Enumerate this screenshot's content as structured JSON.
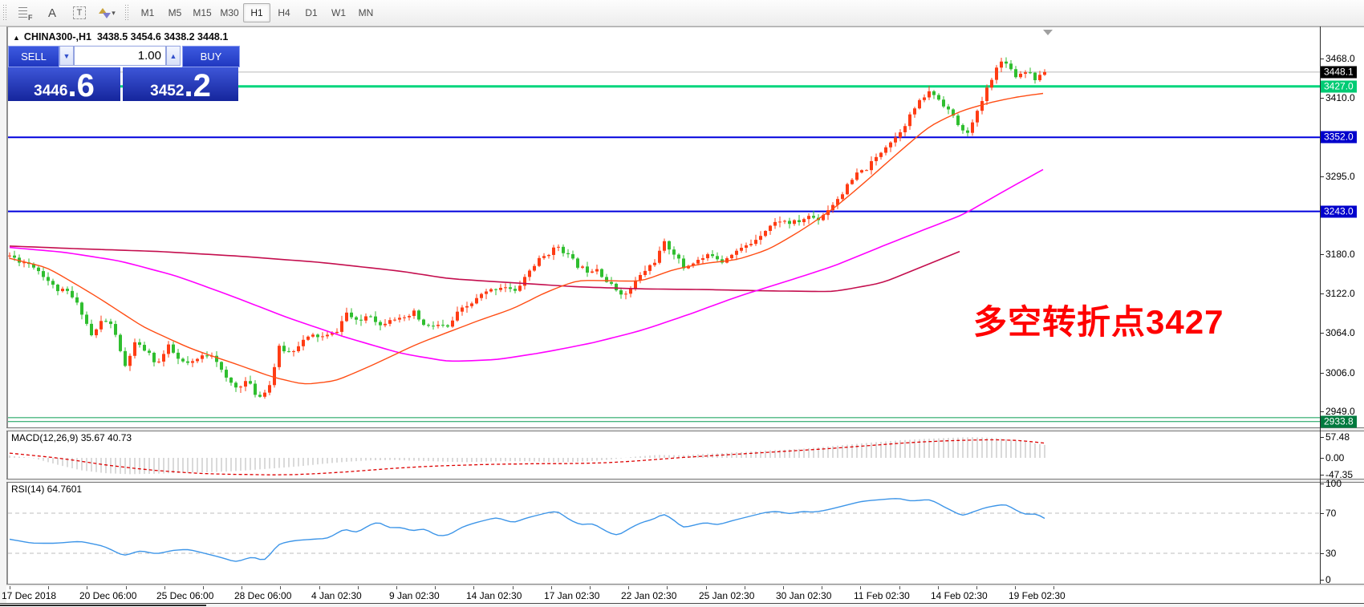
{
  "toolbar": {
    "tools": [
      {
        "name": "fibonacci-tool",
        "glyph": "F"
      },
      {
        "name": "text-tool",
        "glyph": "A"
      },
      {
        "name": "text-label-tool",
        "glyph": "T"
      },
      {
        "name": "arrows-tool",
        "glyph": ""
      }
    ],
    "dropdown_caret": "▼",
    "timeframes": [
      "M1",
      "M5",
      "M15",
      "M30",
      "H1",
      "H4",
      "D1",
      "W1",
      "MN"
    ],
    "active_timeframe": "H1"
  },
  "title_bar": {
    "collapse_marker": "▲",
    "symbol": "CHINA300-,H1",
    "ohlc": "3438.5 3454.6 3438.2 3448.1"
  },
  "one_click": {
    "sell": "SELL",
    "buy": "BUY",
    "volume": "1.00",
    "volume_down_icon": "▼",
    "volume_up_icon": "▲",
    "sell_big": "3446",
    "sell_frac": ".6",
    "buy_big": "3452",
    "buy_frac": ".2"
  },
  "annotation": {
    "text": "多空转折点3427",
    "color": "#ff0000"
  },
  "panels": {
    "macd_label": "MACD(12,26,9) 35.67 40.73",
    "rsi_label": "RSI(14) 64.7601"
  },
  "price_axis": {
    "ticks": [
      "3468.0",
      "3410.0",
      "3295.0",
      "3180.0",
      "3122.0",
      "3064.0",
      "3006.0",
      "2949.0"
    ],
    "badges": [
      {
        "label": "3448.1",
        "price": 3448.1,
        "bg": "#000000"
      },
      {
        "label": "3427.0",
        "price": 3427.0,
        "bg": "#00cb74"
      },
      {
        "label": "3352.0",
        "price": 3352.0,
        "bg": "#0000cc"
      },
      {
        "label": "3243.0",
        "price": 3243.0,
        "bg": "#0000cc"
      },
      {
        "label": "2933.8",
        "price": 2933.8,
        "bg": "#007a3e"
      }
    ]
  },
  "macd_axis": [
    {
      "label": "57.48",
      "value": 57.48
    },
    {
      "label": "0.00",
      "value": 0
    },
    {
      "label": "-47.35",
      "value": -47.35
    }
  ],
  "rsi_axis": [
    {
      "label": "100",
      "value": 100
    },
    {
      "label": "70",
      "value": 70
    },
    {
      "label": "30",
      "value": 30
    },
    {
      "label": "0",
      "value": 0
    }
  ],
  "date_axis": [
    "17 Dec 2018",
    "20 Dec 06:00",
    "25 Dec 06:00",
    "28 Dec 06:00",
    "4 Jan 02:30",
    "9 Jan 02:30",
    "14 Jan 02:30",
    "17 Jan 02:30",
    "22 Jan 02:30",
    "25 Jan 02:30",
    "30 Jan 02:30",
    "11 Feb 02:30",
    "14 Feb 02:30",
    "19 Feb 02:30"
  ],
  "colors": {
    "bull": "#ff3c14",
    "bear": "#2fbe2f",
    "ma_fast": "#ff4d14",
    "ma_mid": "#ff00ff",
    "ma_slow": "#c40e4e",
    "level_green": "#00d57c",
    "level_blue": "#0000dd",
    "level_green_dark": "#089c52",
    "current_line": "#b9b9b9",
    "macd_hist": "#b5b5b5",
    "macd_signal": "#dd0000",
    "rsi_line": "#3d95e8",
    "rsi_levels": "#bdbdbd",
    "annotation": "#ff0000"
  },
  "chart_data": {
    "type": "candlestick+indicators",
    "symbol": "CHINA300-",
    "timeframe": "H1",
    "current_price": 3448.1,
    "price_range_visible": [
      2929,
      3486
    ],
    "levels": [
      {
        "price": 3427.0,
        "color": "#00d57c",
        "width": 3
      },
      {
        "price": 3352.0,
        "color": "#0000dd",
        "width": 2
      },
      {
        "price": 3243.0,
        "color": "#0000dd",
        "width": 2
      },
      {
        "price": 2939.5,
        "color": "#089c52",
        "width": 1
      },
      {
        "price": 2933.8,
        "color": "#089c52",
        "width": 1
      }
    ],
    "close_path": [
      [
        12,
        3178
      ],
      [
        25,
        3170
      ],
      [
        40,
        3165
      ],
      [
        55,
        3148
      ],
      [
        70,
        3128
      ],
      [
        85,
        3124
      ],
      [
        100,
        3100
      ],
      [
        115,
        3058
      ],
      [
        128,
        3085
      ],
      [
        142,
        3072
      ],
      [
        155,
        3012
      ],
      [
        168,
        3048
      ],
      [
        182,
        3038
      ],
      [
        196,
        3018
      ],
      [
        210,
        3044
      ],
      [
        224,
        3022
      ],
      [
        238,
        3018
      ],
      [
        252,
        3030
      ],
      [
        266,
        3034
      ],
      [
        280,
        2998
      ],
      [
        294,
        2984
      ],
      [
        308,
        2994
      ],
      [
        322,
        2968
      ],
      [
        336,
        2988
      ],
      [
        348,
        3042
      ],
      [
        362,
        3035
      ],
      [
        376,
        3052
      ],
      [
        390,
        3060
      ],
      [
        404,
        3058
      ],
      [
        418,
        3064
      ],
      [
        432,
        3094
      ],
      [
        446,
        3078
      ],
      [
        460,
        3094
      ],
      [
        474,
        3075
      ],
      [
        488,
        3088
      ],
      [
        502,
        3082
      ],
      [
        516,
        3094
      ],
      [
        530,
        3072
      ],
      [
        544,
        3076
      ],
      [
        558,
        3072
      ],
      [
        572,
        3096
      ],
      [
        586,
        3106
      ],
      [
        600,
        3120
      ],
      [
        614,
        3128
      ],
      [
        628,
        3134
      ],
      [
        642,
        3124
      ],
      [
        656,
        3150
      ],
      [
        670,
        3170
      ],
      [
        684,
        3182
      ],
      [
        696,
        3192
      ],
      [
        708,
        3178
      ],
      [
        720,
        3163
      ],
      [
        732,
        3156
      ],
      [
        744,
        3160
      ],
      [
        756,
        3140
      ],
      [
        768,
        3128
      ],
      [
        780,
        3120
      ],
      [
        792,
        3140
      ],
      [
        804,
        3156
      ],
      [
        816,
        3170
      ],
      [
        828,
        3196
      ],
      [
        840,
        3182
      ],
      [
        852,
        3160
      ],
      [
        864,
        3168
      ],
      [
        876,
        3174
      ],
      [
        888,
        3180
      ],
      [
        900,
        3170
      ],
      [
        912,
        3182
      ],
      [
        924,
        3188
      ],
      [
        936,
        3196
      ],
      [
        948,
        3210
      ],
      [
        960,
        3222
      ],
      [
        972,
        3230
      ],
      [
        984,
        3226
      ],
      [
        996,
        3228
      ],
      [
        1008,
        3236
      ],
      [
        1020,
        3232
      ],
      [
        1032,
        3246
      ],
      [
        1044,
        3262
      ],
      [
        1056,
        3280
      ],
      [
        1068,
        3298
      ],
      [
        1080,
        3306
      ],
      [
        1092,
        3322
      ],
      [
        1104,
        3340
      ],
      [
        1116,
        3352
      ],
      [
        1128,
        3372
      ],
      [
        1140,
        3395
      ],
      [
        1152,
        3412
      ],
      [
        1160,
        3420
      ],
      [
        1170,
        3408
      ],
      [
        1180,
        3396
      ],
      [
        1190,
        3378
      ],
      [
        1200,
        3360
      ],
      [
        1208,
        3362
      ],
      [
        1218,
        3388
      ],
      [
        1228,
        3418
      ],
      [
        1236,
        3440
      ],
      [
        1244,
        3458
      ],
      [
        1252,
        3468
      ],
      [
        1260,
        3452
      ],
      [
        1268,
        3440
      ],
      [
        1276,
        3452
      ],
      [
        1284,
        3446
      ],
      [
        1292,
        3436
      ],
      [
        1302,
        3448.1
      ]
    ],
    "ma_fast": [
      [
        12,
        3174
      ],
      [
        60,
        3160
      ],
      [
        120,
        3118
      ],
      [
        180,
        3072
      ],
      [
        240,
        3040
      ],
      [
        300,
        3016
      ],
      [
        340,
        2999
      ],
      [
        380,
        2988
      ],
      [
        420,
        2994
      ],
      [
        470,
        3020
      ],
      [
        520,
        3048
      ],
      [
        560,
        3066
      ],
      [
        600,
        3084
      ],
      [
        640,
        3100
      ],
      [
        680,
        3124
      ],
      [
        720,
        3142
      ],
      [
        760,
        3141
      ],
      [
        800,
        3140
      ],
      [
        840,
        3158
      ],
      [
        880,
        3167
      ],
      [
        920,
        3172
      ],
      [
        960,
        3188
      ],
      [
        1000,
        3216
      ],
      [
        1040,
        3248
      ],
      [
        1080,
        3288
      ],
      [
        1120,
        3330
      ],
      [
        1160,
        3370
      ],
      [
        1200,
        3392
      ],
      [
        1240,
        3405
      ],
      [
        1270,
        3412
      ],
      [
        1302,
        3417
      ]
    ],
    "ma_mid": [
      [
        12,
        3190
      ],
      [
        80,
        3183
      ],
      [
        150,
        3170
      ],
      [
        220,
        3148
      ],
      [
        290,
        3118
      ],
      [
        360,
        3086
      ],
      [
        430,
        3058
      ],
      [
        500,
        3034
      ],
      [
        560,
        3022
      ],
      [
        620,
        3025
      ],
      [
        680,
        3036
      ],
      [
        740,
        3050
      ],
      [
        800,
        3068
      ],
      [
        860,
        3092
      ],
      [
        920,
        3118
      ],
      [
        980,
        3140
      ],
      [
        1040,
        3163
      ],
      [
        1100,
        3192
      ],
      [
        1160,
        3220
      ],
      [
        1200,
        3238
      ],
      [
        1250,
        3272
      ],
      [
        1302,
        3306
      ]
    ],
    "ma_slow": [
      [
        12,
        3192
      ],
      [
        100,
        3188
      ],
      [
        200,
        3184
      ],
      [
        300,
        3177
      ],
      [
        400,
        3168
      ],
      [
        500,
        3155
      ],
      [
        560,
        3144
      ],
      [
        640,
        3138
      ],
      [
        720,
        3132
      ],
      [
        800,
        3129
      ],
      [
        880,
        3128
      ],
      [
        960,
        3126
      ],
      [
        1040,
        3125
      ],
      [
        1100,
        3138
      ],
      [
        1150,
        3162
      ],
      [
        1200,
        3186
      ]
    ],
    "macd_hist": [
      [
        12,
        6
      ],
      [
        40,
        0
      ],
      [
        70,
        -18
      ],
      [
        100,
        -34
      ],
      [
        130,
        -42
      ],
      [
        160,
        -45
      ],
      [
        190,
        -44
      ],
      [
        220,
        -42
      ],
      [
        250,
        -40
      ],
      [
        280,
        -38
      ],
      [
        310,
        -34
      ],
      [
        340,
        -29
      ],
      [
        370,
        -24
      ],
      [
        400,
        -17
      ],
      [
        430,
        -11
      ],
      [
        460,
        -7
      ],
      [
        490,
        -6
      ],
      [
        520,
        -8
      ],
      [
        550,
        -10
      ],
      [
        580,
        -12
      ],
      [
        610,
        -10
      ],
      [
        640,
        -9
      ],
      [
        670,
        -10
      ],
      [
        700,
        -12
      ],
      [
        730,
        -10
      ],
      [
        760,
        -5
      ],
      [
        790,
        3
      ],
      [
        820,
        8
      ],
      [
        850,
        7
      ],
      [
        880,
        11
      ],
      [
        910,
        14
      ],
      [
        940,
        18
      ],
      [
        970,
        22
      ],
      [
        1000,
        25
      ],
      [
        1030,
        31
      ],
      [
        1060,
        37
      ],
      [
        1090,
        43
      ],
      [
        1120,
        48
      ],
      [
        1150,
        52
      ],
      [
        1180,
        55
      ],
      [
        1210,
        57
      ],
      [
        1240,
        55
      ],
      [
        1270,
        47
      ],
      [
        1302,
        35.67
      ]
    ],
    "macd_signal": [
      [
        12,
        13
      ],
      [
        40,
        7
      ],
      [
        70,
        0
      ],
      [
        100,
        -9
      ],
      [
        130,
        -19
      ],
      [
        160,
        -27
      ],
      [
        190,
        -34
      ],
      [
        220,
        -39
      ],
      [
        250,
        -43
      ],
      [
        280,
        -45
      ],
      [
        310,
        -46
      ],
      [
        340,
        -47
      ],
      [
        370,
        -46
      ],
      [
        400,
        -43
      ],
      [
        430,
        -39
      ],
      [
        460,
        -34
      ],
      [
        490,
        -29
      ],
      [
        520,
        -25
      ],
      [
        550,
        -22
      ],
      [
        580,
        -20
      ],
      [
        610,
        -18
      ],
      [
        640,
        -17
      ],
      [
        670,
        -16
      ],
      [
        700,
        -16
      ],
      [
        730,
        -15
      ],
      [
        760,
        -13
      ],
      [
        790,
        -9
      ],
      [
        820,
        -4
      ],
      [
        850,
        1
      ],
      [
        880,
        5
      ],
      [
        910,
        9
      ],
      [
        940,
        13
      ],
      [
        970,
        17
      ],
      [
        1000,
        21
      ],
      [
        1030,
        25
      ],
      [
        1060,
        30
      ],
      [
        1090,
        35
      ],
      [
        1120,
        40
      ],
      [
        1150,
        44
      ],
      [
        1180,
        47
      ],
      [
        1210,
        49
      ],
      [
        1240,
        50
      ],
      [
        1270,
        48
      ],
      [
        1302,
        40.73
      ]
    ],
    "rsi": [
      [
        12,
        44
      ],
      [
        40,
        40
      ],
      [
        70,
        40
      ],
      [
        100,
        42
      ],
      [
        130,
        37
      ],
      [
        155,
        27
      ],
      [
        175,
        33
      ],
      [
        195,
        29
      ],
      [
        215,
        33
      ],
      [
        235,
        34
      ],
      [
        255,
        30
      ],
      [
        275,
        26
      ],
      [
        295,
        21
      ],
      [
        315,
        27
      ],
      [
        330,
        22
      ],
      [
        348,
        40
      ],
      [
        370,
        43
      ],
      [
        390,
        44
      ],
      [
        410,
        45
      ],
      [
        430,
        55
      ],
      [
        445,
        50
      ],
      [
        460,
        58
      ],
      [
        472,
        62
      ],
      [
        485,
        55
      ],
      [
        500,
        56
      ],
      [
        515,
        52
      ],
      [
        530,
        55
      ],
      [
        545,
        47
      ],
      [
        560,
        48
      ],
      [
        575,
        56
      ],
      [
        590,
        60
      ],
      [
        605,
        63
      ],
      [
        620,
        66
      ],
      [
        640,
        60
      ],
      [
        655,
        65
      ],
      [
        670,
        68
      ],
      [
        685,
        71
      ],
      [
        696,
        72
      ],
      [
        710,
        63
      ],
      [
        725,
        58
      ],
      [
        740,
        60
      ],
      [
        755,
        52
      ],
      [
        770,
        47
      ],
      [
        785,
        55
      ],
      [
        800,
        61
      ],
      [
        815,
        64
      ],
      [
        828,
        70
      ],
      [
        840,
        63
      ],
      [
        852,
        55
      ],
      [
        865,
        58
      ],
      [
        880,
        61
      ],
      [
        895,
        58
      ],
      [
        910,
        62
      ],
      [
        925,
        65
      ],
      [
        940,
        68
      ],
      [
        955,
        71
      ],
      [
        970,
        72
      ],
      [
        985,
        69
      ],
      [
        1000,
        72
      ],
      [
        1015,
        71
      ],
      [
        1030,
        73
      ],
      [
        1045,
        76
      ],
      [
        1060,
        79
      ],
      [
        1075,
        82
      ],
      [
        1090,
        83
      ],
      [
        1105,
        84
      ],
      [
        1120,
        85
      ],
      [
        1135,
        82
      ],
      [
        1150,
        83
      ],
      [
        1160,
        84
      ],
      [
        1175,
        77
      ],
      [
        1190,
        71
      ],
      [
        1200,
        67
      ],
      [
        1215,
        72
      ],
      [
        1230,
        76
      ],
      [
        1245,
        78
      ],
      [
        1255,
        79
      ],
      [
        1268,
        72
      ],
      [
        1280,
        68
      ],
      [
        1292,
        70
      ],
      [
        1302,
        64.76
      ]
    ]
  }
}
